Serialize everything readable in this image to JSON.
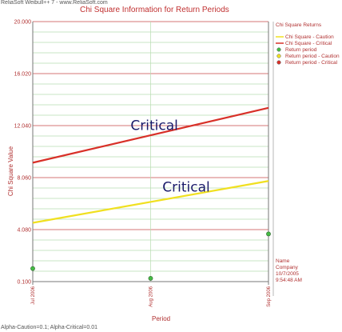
{
  "header": {
    "source_label": "ReliaSoft Weibull++ 7 - www.ReliaSoft.com"
  },
  "footer": {
    "alpha_label": "Alpha-Caution=0.1; Alpha-Critical=0.01"
  },
  "info": {
    "name": "Name",
    "company": "Company",
    "date": "10/7/2005",
    "time": "9:54:48 AM"
  },
  "chart_data": {
    "type": "line",
    "title": "Chi Square Information for Return Periods",
    "xlabel": "Period",
    "ylabel": "Chi Square Value",
    "x_categories": [
      "Jul 2006",
      "Aug 2006",
      "Sep 2006"
    ],
    "y_ticks": [
      0.1,
      4.08,
      8.06,
      12.04,
      16.02,
      20.0
    ],
    "y_tick_labels": [
      "0.100",
      "4.080",
      "8.060",
      "12.040",
      "16.020",
      "20.000"
    ],
    "ylim": [
      0.1,
      20.0
    ],
    "grid": true,
    "legend": {
      "title": "Chi Square Returns",
      "placement": "right",
      "entries": [
        "Chi Square - Caution",
        "Chi Square - Critical",
        "Return period",
        "Return period - Caution",
        "Return period - Critical"
      ]
    },
    "series": [
      {
        "name": "Chi Square - Caution",
        "color": "#f0e020",
        "x": [
          0,
          2
        ],
        "y": [
          4.6,
          7.8
        ]
      },
      {
        "name": "Chi Square - Critical",
        "color": "#d83028",
        "x": [
          0,
          2
        ],
        "y": [
          9.2,
          13.4
        ]
      },
      {
        "name": "Return period",
        "color": "#44bb44",
        "x": [
          0,
          1,
          2
        ],
        "y": [
          1.1,
          0.35,
          3.75
        ]
      }
    ],
    "legend_colors": [
      "#f0e020",
      "#d83028",
      "#44bb44",
      "#f0e020",
      "#d83028"
    ],
    "annotations": [
      {
        "text": "Critical",
        "x": 0.83,
        "y": 11.7
      },
      {
        "text": "Critical",
        "x": 1.1,
        "y": 7.0
      }
    ]
  }
}
